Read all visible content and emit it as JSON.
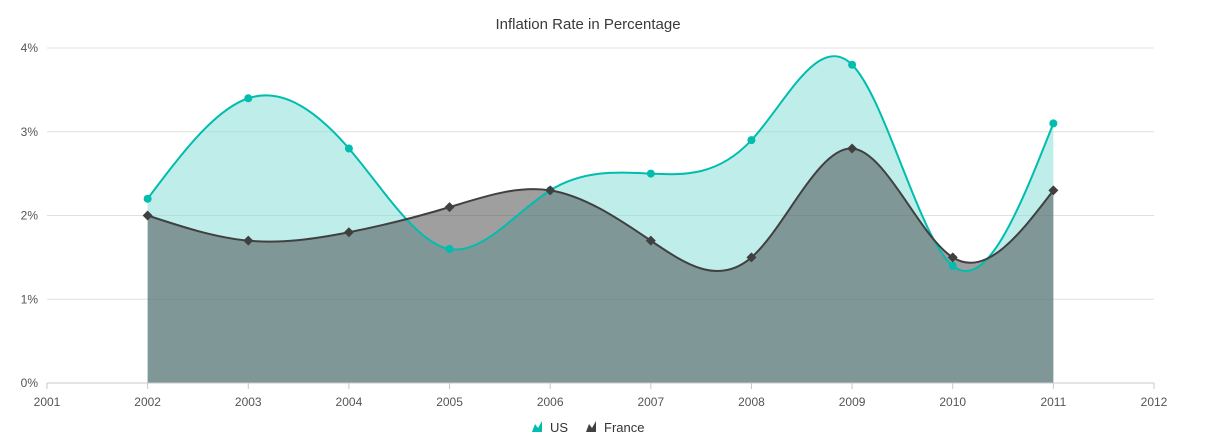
{
  "chart_data": {
    "type": "area",
    "subtype": "spline-area",
    "title": "Inflation Rate in Percentage",
    "xlabel": "",
    "ylabel": "",
    "x_ticks": [
      "2001",
      "2002",
      "2003",
      "2004",
      "2005",
      "2006",
      "2007",
      "2008",
      "2009",
      "2010",
      "2011",
      "2012"
    ],
    "xlim": [
      2001,
      2012
    ],
    "y_ticks": [
      "0%",
      "1%",
      "2%",
      "3%",
      "4%"
    ],
    "ylim": [
      0,
      4
    ],
    "grid": "horizontal",
    "legend_position": "bottom",
    "series": [
      {
        "name": "US",
        "marker": "circle",
        "color": "#00bdae",
        "fill": "#7fded6",
        "points": [
          {
            "x": 2002,
            "y": 2.2
          },
          {
            "x": 2003,
            "y": 3.4
          },
          {
            "x": 2004,
            "y": 2.8
          },
          {
            "x": 2005,
            "y": 1.6
          },
          {
            "x": 2006,
            "y": 2.3
          },
          {
            "x": 2007,
            "y": 2.5
          },
          {
            "x": 2008,
            "y": 2.9
          },
          {
            "x": 2009,
            "y": 3.8
          },
          {
            "x": 2010,
            "y": 1.4
          },
          {
            "x": 2011,
            "y": 3.1
          }
        ]
      },
      {
        "name": "France",
        "marker": "diamond",
        "color": "#404041",
        "fill": "#404041",
        "points": [
          {
            "x": 2002,
            "y": 2.0
          },
          {
            "x": 2003,
            "y": 1.7
          },
          {
            "x": 2004,
            "y": 1.8
          },
          {
            "x": 2005,
            "y": 2.1
          },
          {
            "x": 2006,
            "y": 2.3
          },
          {
            "x": 2007,
            "y": 1.7
          },
          {
            "x": 2008,
            "y": 1.5
          },
          {
            "x": 2009,
            "y": 2.8
          },
          {
            "x": 2010,
            "y": 1.5
          },
          {
            "x": 2011,
            "y": 2.3
          }
        ]
      }
    ]
  }
}
